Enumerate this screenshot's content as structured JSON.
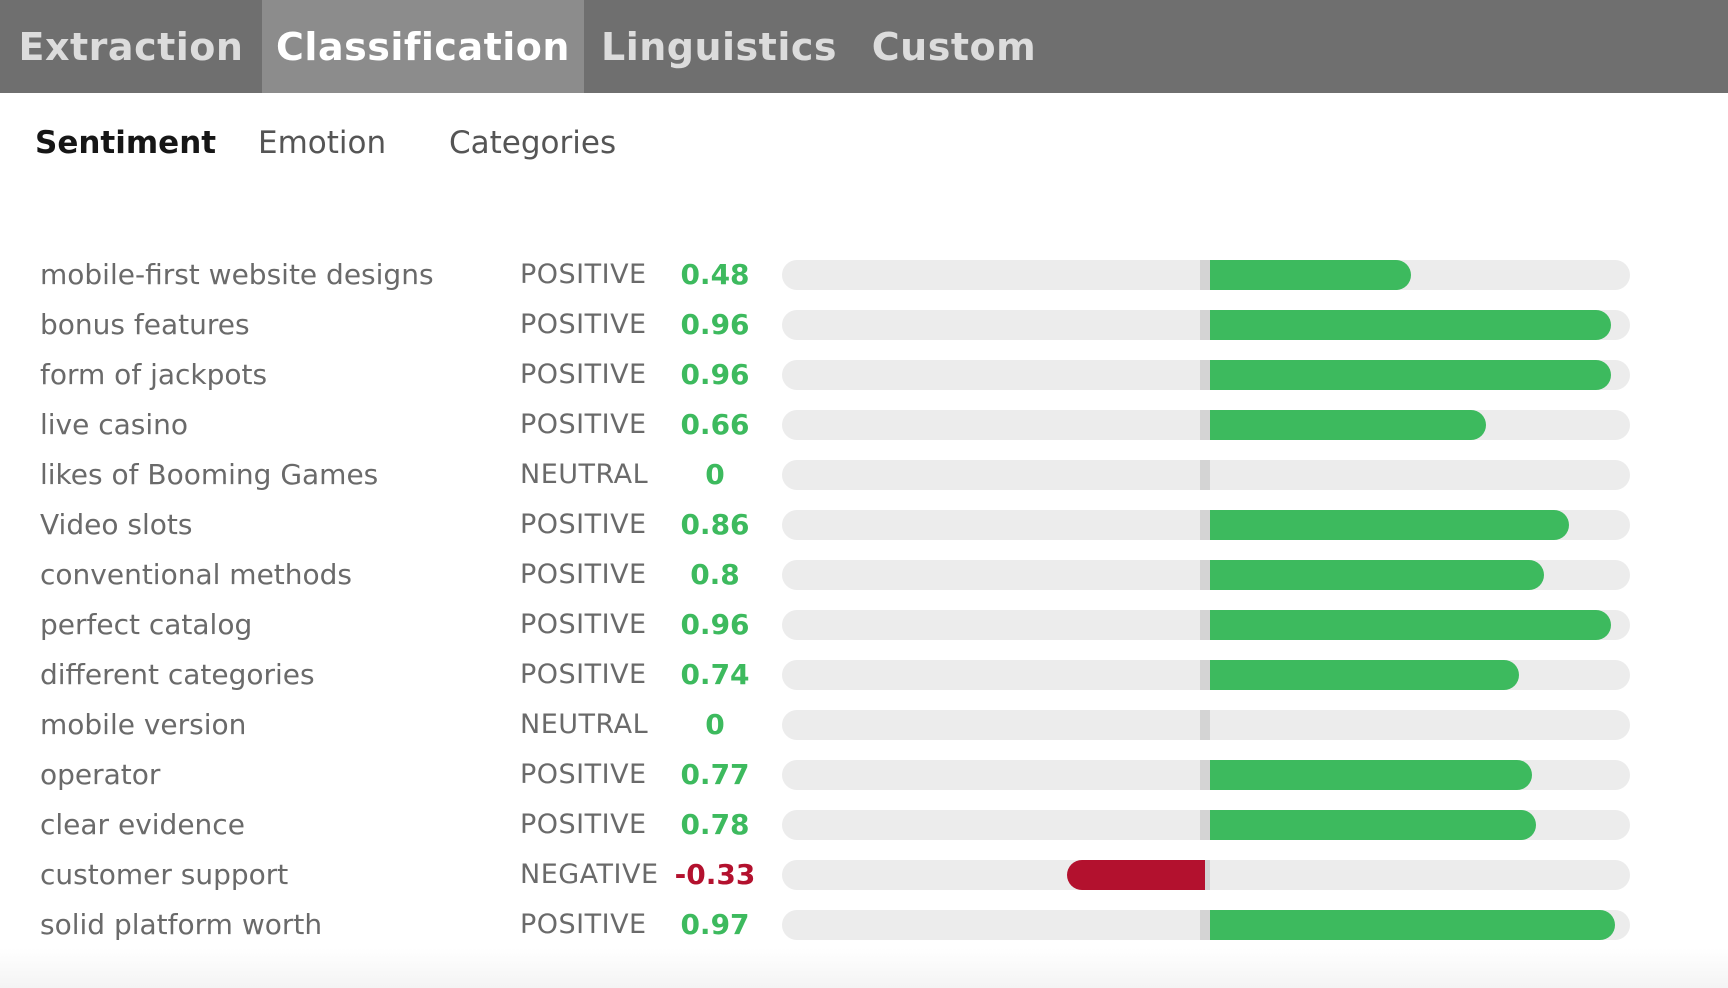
{
  "nav": {
    "tabs": [
      "Extraction",
      "Classification",
      "Linguistics",
      "Custom"
    ],
    "active": 1
  },
  "subnav": {
    "tabs": [
      "Sentiment",
      "Emotion",
      "Categories"
    ],
    "active": 0
  },
  "colors": {
    "positive": "#3dba5e",
    "negative": "#b3112e",
    "neutral": "#3dba5e"
  },
  "sentiment": {
    "rows": [
      {
        "label": "mobile-first website designs",
        "sentiment": "POSITIVE",
        "score": "0.48",
        "value": 0.48
      },
      {
        "label": "bonus features",
        "sentiment": "POSITIVE",
        "score": "0.96",
        "value": 0.96
      },
      {
        "label": "form of jackpots",
        "sentiment": "POSITIVE",
        "score": "0.96",
        "value": 0.96
      },
      {
        "label": "live casino",
        "sentiment": "POSITIVE",
        "score": "0.66",
        "value": 0.66
      },
      {
        "label": "likes of Booming Games",
        "sentiment": "NEUTRAL",
        "score": "0",
        "value": 0
      },
      {
        "label": "Video slots",
        "sentiment": "POSITIVE",
        "score": "0.86",
        "value": 0.86
      },
      {
        "label": "conventional methods",
        "sentiment": "POSITIVE",
        "score": "0.8",
        "value": 0.8
      },
      {
        "label": "perfect catalog",
        "sentiment": "POSITIVE",
        "score": "0.96",
        "value": 0.96
      },
      {
        "label": "different categories",
        "sentiment": "POSITIVE",
        "score": "0.74",
        "value": 0.74
      },
      {
        "label": "mobile version",
        "sentiment": "NEUTRAL",
        "score": "0",
        "value": 0
      },
      {
        "label": "operator",
        "sentiment": "POSITIVE",
        "score": "0.77",
        "value": 0.77
      },
      {
        "label": "clear evidence",
        "sentiment": "POSITIVE",
        "score": "0.78",
        "value": 0.78
      },
      {
        "label": "customer support",
        "sentiment": "NEGATIVE",
        "score": "-0.33",
        "value": -0.33
      },
      {
        "label": "solid platform worth",
        "sentiment": "POSITIVE",
        "score": "0.97",
        "value": 0.97
      }
    ]
  }
}
